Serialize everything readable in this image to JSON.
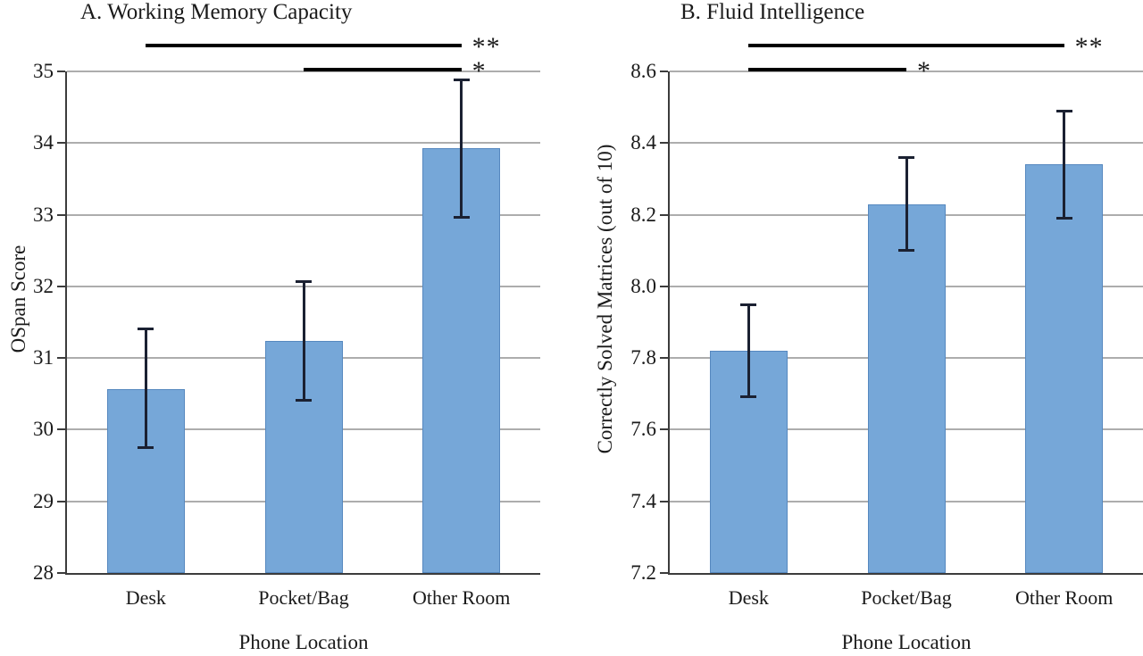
{
  "figure_background": "#ffffff",
  "colors": {
    "bar_fill": "#76a7d8",
    "bar_border": "#5688bf",
    "error_bar": "#1b2132",
    "grid_line": "#adadad",
    "axis_line": "#3c3c3c",
    "sig_line": "#000000",
    "text": "#1a1a1a",
    "background": "#ffffff"
  },
  "chart_data": [
    {
      "type": "bar",
      "panel": "A",
      "title": "A. Working Memory Capacity",
      "xlabel": "Phone Location",
      "ylabel": "OSpan Score",
      "categories": [
        "Desk",
        "Pocket/Bag",
        "Other Room"
      ],
      "values": [
        30.57,
        31.24,
        33.93
      ],
      "error_low": [
        29.74,
        30.4,
        32.96
      ],
      "error_high": [
        31.41,
        32.07,
        34.89
      ],
      "ylim": [
        28,
        35
      ],
      "ytick_step": 1,
      "ytick_labels_top_to_bottom": [
        "35",
        "34",
        "33",
        "32",
        "31",
        "30",
        "29",
        "28"
      ],
      "grid": true,
      "legend": "none",
      "significance": [
        {
          "between": [
            "Desk",
            "Other Room"
          ],
          "label": "**"
        },
        {
          "between": [
            "Pocket/Bag",
            "Other Room"
          ],
          "label": "*"
        }
      ]
    },
    {
      "type": "bar",
      "panel": "B",
      "title": "B. Fluid Intelligence",
      "xlabel": "Phone Location",
      "ylabel": "Correctly Solved Matrices (out of 10)",
      "categories": [
        "Desk",
        "Pocket/Bag",
        "Other Room"
      ],
      "values": [
        7.82,
        8.23,
        8.34
      ],
      "error_low": [
        7.69,
        8.1,
        8.19
      ],
      "error_high": [
        7.95,
        8.36,
        8.49
      ],
      "ylim": [
        7.2,
        8.6
      ],
      "ytick_step": 0.2,
      "ytick_labels_top_to_bottom": [
        "8.6",
        "8.4",
        "8.2",
        "8.0",
        "7.8",
        "7.6",
        "7.4",
        "7.2"
      ],
      "grid": true,
      "legend": "none",
      "significance": [
        {
          "between": [
            "Desk",
            "Other Room"
          ],
          "label": "**"
        },
        {
          "between": [
            "Desk",
            "Pocket/Bag"
          ],
          "label": "*"
        }
      ]
    }
  ]
}
